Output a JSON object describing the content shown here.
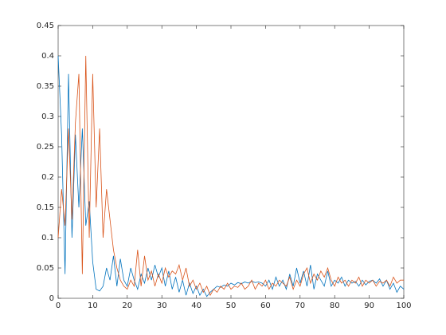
{
  "chart_data": {
    "type": "line",
    "x": [
      0,
      1,
      2,
      3,
      4,
      5,
      6,
      7,
      8,
      9,
      10,
      11,
      12,
      13,
      14,
      15,
      16,
      17,
      18,
      19,
      20,
      21,
      22,
      23,
      24,
      25,
      26,
      27,
      28,
      29,
      30,
      31,
      32,
      33,
      34,
      35,
      36,
      37,
      38,
      39,
      40,
      41,
      42,
      43,
      44,
      45,
      46,
      47,
      48,
      49,
      50,
      51,
      52,
      53,
      54,
      55,
      56,
      57,
      58,
      59,
      60,
      61,
      62,
      63,
      64,
      65,
      66,
      67,
      68,
      69,
      70,
      71,
      72,
      73,
      74,
      75,
      76,
      77,
      78,
      79,
      80,
      81,
      82,
      83,
      84,
      85,
      86,
      87,
      88,
      89,
      90,
      91,
      92,
      93,
      94,
      95,
      96,
      97,
      98,
      99,
      100
    ],
    "series": [
      {
        "color": "#0072bd",
        "values": [
          0.4,
          0.27,
          0.04,
          0.37,
          0.1,
          0.27,
          0.15,
          0.28,
          0.12,
          0.16,
          0.06,
          0.015,
          0.012,
          0.02,
          0.05,
          0.03,
          0.07,
          0.02,
          0.065,
          0.03,
          0.02,
          0.05,
          0.03,
          0.015,
          0.04,
          0.025,
          0.05,
          0.03,
          0.055,
          0.035,
          0.05,
          0.02,
          0.045,
          0.015,
          0.035,
          0.01,
          0.03,
          0.005,
          0.025,
          0.008,
          0.02,
          0.005,
          0.015,
          0.003,
          0.01,
          0.015,
          0.02,
          0.018,
          0.022,
          0.02,
          0.025,
          0.022,
          0.026,
          0.024,
          0.027,
          0.025,
          0.028,
          0.026,
          0.027,
          0.025,
          0.02,
          0.03,
          0.015,
          0.035,
          0.02,
          0.03,
          0.015,
          0.04,
          0.02,
          0.05,
          0.025,
          0.045,
          0.02,
          0.055,
          0.015,
          0.04,
          0.03,
          0.02,
          0.045,
          0.02,
          0.03,
          0.025,
          0.035,
          0.02,
          0.03,
          0.025,
          0.028,
          0.02,
          0.03,
          0.022,
          0.028,
          0.03,
          0.025,
          0.032,
          0.02,
          0.03,
          0.015,
          0.025,
          0.01,
          0.02,
          0.015
        ]
      },
      {
        "color": "#d95319",
        "values": [
          0.1,
          0.18,
          0.12,
          0.28,
          0.13,
          0.29,
          0.37,
          0.04,
          0.4,
          0.1,
          0.37,
          0.15,
          0.28,
          0.1,
          0.18,
          0.13,
          0.08,
          0.05,
          0.03,
          0.02,
          0.015,
          0.03,
          0.02,
          0.08,
          0.02,
          0.07,
          0.03,
          0.045,
          0.02,
          0.04,
          0.025,
          0.05,
          0.035,
          0.045,
          0.04,
          0.055,
          0.03,
          0.05,
          0.02,
          0.03,
          0.015,
          0.025,
          0.01,
          0.02,
          0.005,
          0.015,
          0.01,
          0.02,
          0.015,
          0.025,
          0.015,
          0.02,
          0.018,
          0.025,
          0.015,
          0.02,
          0.03,
          0.015,
          0.025,
          0.02,
          0.03,
          0.015,
          0.025,
          0.02,
          0.03,
          0.025,
          0.02,
          0.035,
          0.015,
          0.03,
          0.02,
          0.04,
          0.05,
          0.025,
          0.04,
          0.03,
          0.045,
          0.035,
          0.05,
          0.03,
          0.02,
          0.035,
          0.025,
          0.03,
          0.02,
          0.03,
          0.025,
          0.035,
          0.02,
          0.03,
          0.025,
          0.03,
          0.02,
          0.028,
          0.025,
          0.03,
          0.02,
          0.035,
          0.025,
          0.03,
          0.03
        ]
      }
    ],
    "xlim": [
      0,
      100
    ],
    "xticks": [
      0,
      10,
      20,
      30,
      40,
      50,
      60,
      70,
      80,
      90,
      100
    ],
    "ylim": [
      0,
      0.45
    ],
    "yticks": [
      0,
      0.05,
      0.1,
      0.15,
      0.2,
      0.25,
      0.3,
      0.35,
      0.4,
      0.45
    ]
  }
}
